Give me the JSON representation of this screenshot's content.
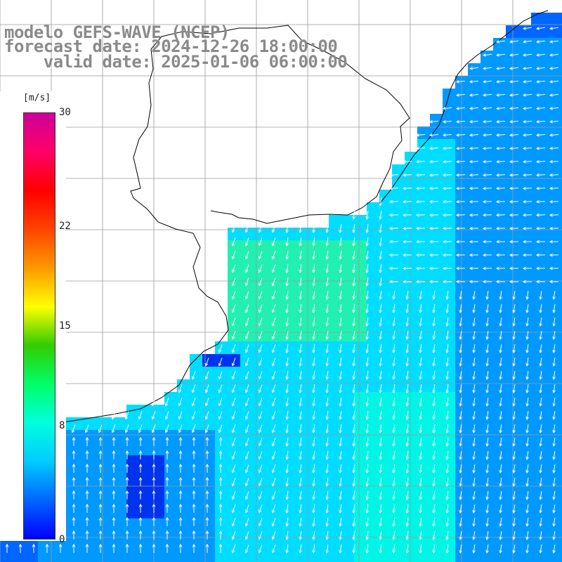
{
  "title": {
    "line1": "modelo GEFS-WAVE (NCEP)",
    "line2": "forecast date: 2024-12-26 18:00:00",
    "line3": "    valid date: 2025-01-06 06:00:00"
  },
  "colorbar": {
    "unit": "[m/s]",
    "min": 0,
    "max": 30,
    "ticks": [
      {
        "label": "30",
        "value": 30
      },
      {
        "label": "22",
        "value": 22
      },
      {
        "label": "15",
        "value": 15
      },
      {
        "label": "8",
        "value": 8
      },
      {
        "label": "0",
        "value": 0
      }
    ],
    "colors": [
      "#0000ff",
      "#0066ff",
      "#00ccff",
      "#00ffdd",
      "#00ff66",
      "#33cc00",
      "#ffff00",
      "#ff9900",
      "#ff4400",
      "#ff0000",
      "#ff0066",
      "#cc0099"
    ]
  },
  "field": {
    "colors": {
      "deep_blue": "#0033ee",
      "blue": "#0066ff",
      "mid_blue": "#0099ff",
      "cyan": "#00ddff",
      "aqua": "#00f5e6",
      "green_cyan": "#22f0b0"
    },
    "arrow_color": "#ffffff",
    "land_color": "#ffffff",
    "coast_color": "#000000"
  }
}
